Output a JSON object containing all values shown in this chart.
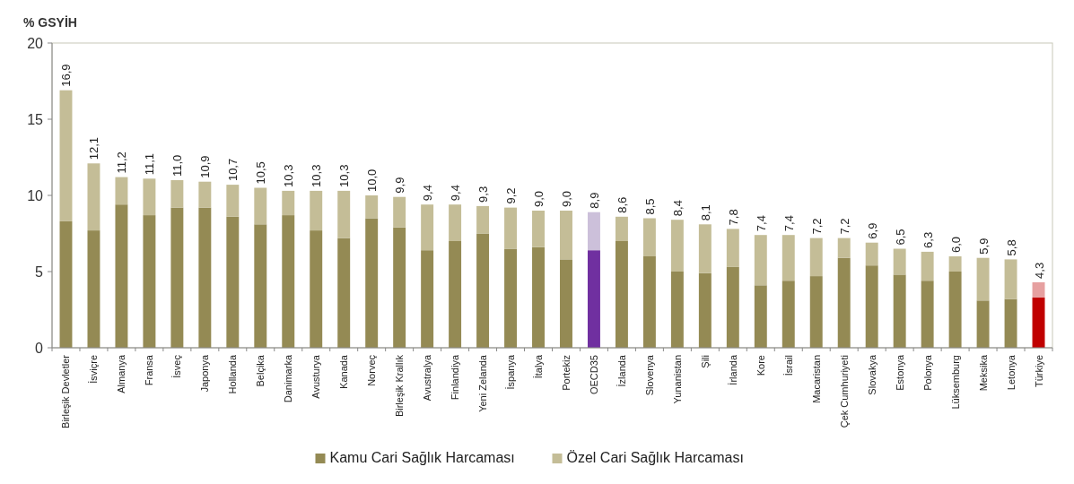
{
  "chart_data": {
    "type": "bar",
    "stacked": true,
    "ylabel": "% GSYİH",
    "categories": [
      "Birleşik Devletler",
      "İsviçre",
      "Almanya",
      "Fransa",
      "İsveç",
      "Japonya",
      "Hollanda",
      "Belçika",
      "Danimarka",
      "Avusturya",
      "Kanada",
      "Norveç",
      "Birleşik Krallık",
      "Avustralya",
      "Finlandiya",
      "Yeni Zelanda",
      "İspanya",
      "İtalya",
      "Portekiz",
      "OECD35",
      "İzlanda",
      "Slovenya",
      "Yunanistan",
      "Şili",
      "İrlanda",
      "Kore",
      "İsrail",
      "Macaristan",
      "Çek Cumhuriyeti",
      "Slovakya",
      "Estonya",
      "Polonya",
      "Lüksemburg",
      "Meksika",
      "Letonya",
      "Türkiye"
    ],
    "series": [
      {
        "name": "Kamu Cari Sağlık Harcaması",
        "color": "#948a54",
        "colors": [
          "#948a54",
          "#948a54",
          "#948a54",
          "#948a54",
          "#948a54",
          "#948a54",
          "#948a54",
          "#948a54",
          "#948a54",
          "#948a54",
          "#948a54",
          "#948a54",
          "#948a54",
          "#948a54",
          "#948a54",
          "#948a54",
          "#948a54",
          "#948a54",
          "#948a54",
          "#7030a0",
          "#948a54",
          "#948a54",
          "#948a54",
          "#948a54",
          "#948a54",
          "#948a54",
          "#948a54",
          "#948a54",
          "#948a54",
          "#948a54",
          "#948a54",
          "#948a54",
          "#948a54",
          "#948a54",
          "#948a54",
          "#c00000"
        ],
        "values": [
          8.3,
          7.7,
          9.4,
          8.7,
          9.2,
          9.2,
          8.6,
          8.1,
          8.7,
          7.7,
          7.2,
          8.5,
          7.9,
          6.4,
          7.0,
          7.5,
          6.5,
          6.6,
          5.8,
          6.4,
          7.0,
          6.0,
          5.0,
          4.9,
          5.3,
          4.1,
          4.4,
          4.7,
          5.9,
          5.4,
          4.8,
          4.4,
          5.0,
          3.1,
          3.2,
          3.3
        ]
      },
      {
        "name": "Özel Cari Sağlık Harcaması",
        "color": "#c4bd97",
        "colors": [
          "#c4bd97",
          "#c4bd97",
          "#c4bd97",
          "#c4bd97",
          "#c4bd97",
          "#c4bd97",
          "#c4bd97",
          "#c4bd97",
          "#c4bd97",
          "#c4bd97",
          "#c4bd97",
          "#c4bd97",
          "#c4bd97",
          "#c4bd97",
          "#c4bd97",
          "#c4bd97",
          "#c4bd97",
          "#c4bd97",
          "#c4bd97",
          "#ccc0da",
          "#c4bd97",
          "#c4bd97",
          "#c4bd97",
          "#c4bd97",
          "#c4bd97",
          "#c4bd97",
          "#c4bd97",
          "#c4bd97",
          "#c4bd97",
          "#c4bd97",
          "#c4bd97",
          "#c4bd97",
          "#c4bd97",
          "#c4bd97",
          "#c4bd97",
          "#e6a0a0"
        ],
        "values": [
          8.6,
          4.4,
          1.8,
          2.4,
          1.8,
          1.7,
          2.1,
          2.4,
          1.6,
          2.6,
          3.1,
          1.5,
          2.0,
          3.0,
          2.4,
          1.8,
          2.7,
          2.4,
          3.2,
          2.5,
          1.6,
          2.5,
          3.4,
          3.2,
          2.5,
          3.3,
          3.0,
          2.5,
          1.3,
          1.5,
          1.7,
          1.9,
          1.0,
          2.8,
          2.6,
          1.0
        ]
      }
    ],
    "totals": [
      "16,9",
      "12,1",
      "11,2",
      "11,1",
      "11,0",
      "10,9",
      "10,7",
      "10,5",
      "10,3",
      "10,3",
      "10,3",
      "10,0",
      "9,9",
      "9,4",
      "9,4",
      "9,3",
      "9,2",
      "9,0",
      "9,0",
      "8,9",
      "8,6",
      "8,5",
      "8,4",
      "8,1",
      "7,8",
      "7,4",
      "7,4",
      "7,2",
      "7,2",
      "6,9",
      "6,5",
      "6,3",
      "6,0",
      "5,9",
      "5,8",
      "4,3"
    ],
    "ylim": [
      0,
      20
    ],
    "yticks": [
      0,
      5,
      10,
      15,
      20
    ],
    "legend": "bottom"
  }
}
